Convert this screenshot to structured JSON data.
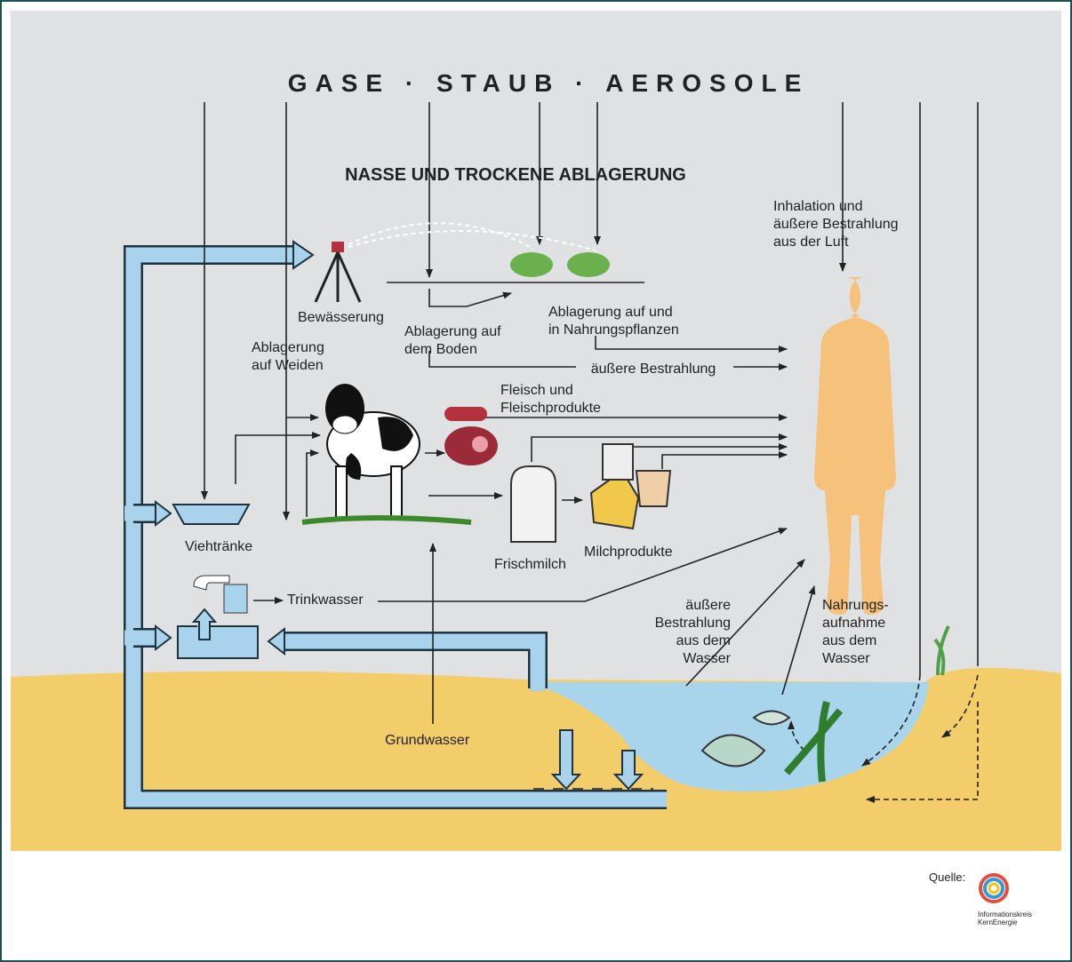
{
  "title": "GASE · STAUB · AEROSOLE",
  "subtitle": "NASSE UND TROCKENE ABLAGERUNG",
  "nodes": [
    {
      "lines": [
        "Bewässerung"
      ]
    },
    {
      "lines": [
        "Ablagerung",
        "auf Weiden"
      ]
    },
    {
      "lines": [
        "Ablagerung auf",
        "dem Boden"
      ]
    },
    {
      "lines": [
        "Ablagerung auf und",
        "in Nahrungspflanzen"
      ]
    },
    {
      "lines": [
        "äußere Bestrahlung"
      ]
    },
    {
      "lines": [
        "Inhalation und",
        "äußere Bestrahlung",
        "aus der Luft"
      ]
    },
    {
      "lines": [
        "Fleisch und",
        "Fleischprodukte"
      ]
    },
    {
      "lines": [
        "Viehtränke"
      ]
    },
    {
      "lines": [
        "Frischmilch"
      ]
    },
    {
      "lines": [
        "Milchprodukte"
      ]
    },
    {
      "lines": [
        "Trinkwasser"
      ]
    },
    {
      "lines": [
        "äußere",
        "Bestrahlung",
        "aus dem",
        "Wasser"
      ]
    },
    {
      "lines": [
        "Nahrungs-",
        "aufnahme",
        "aus dem",
        "Wasser"
      ]
    },
    {
      "lines": [
        "Grundwasser"
      ]
    }
  ],
  "source": {
    "label": "Quelle:",
    "lines": [
      "Informationskreis",
      "KernEnergie"
    ]
  }
}
